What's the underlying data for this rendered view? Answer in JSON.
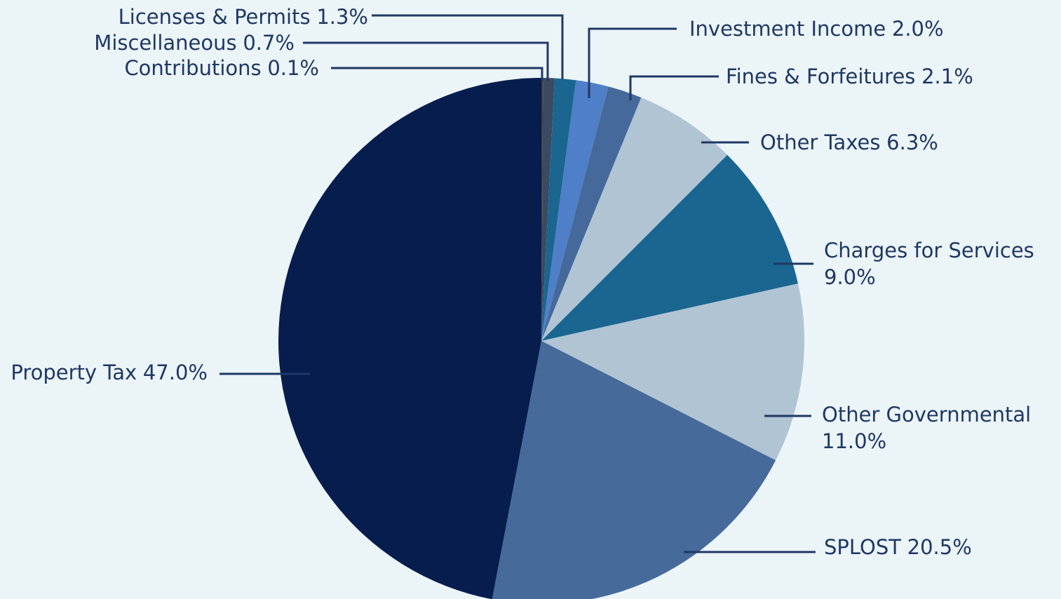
{
  "chart_data": {
    "type": "pie",
    "categories": [
      "Contributions",
      "Miscellaneous",
      "Licenses & Permits",
      "Investment Income",
      "Fines & Forfeitures",
      "Other Taxes",
      "Charges for Services",
      "Other Governmental",
      "SPLOST",
      "Property Tax"
    ],
    "values": [
      0.1,
      0.7,
      1.3,
      2.0,
      2.1,
      6.3,
      9.0,
      11.0,
      20.5,
      47.0
    ],
    "value_labels": [
      "0.1%",
      "0.7%",
      "1.3%",
      "2.0%",
      "2.1%",
      "6.3%",
      "9.0%",
      "11.0%",
      "20.5%",
      "47.0%"
    ],
    "colors": [
      "#3d3d40",
      "#3b4a60",
      "#1a6690",
      "#4f7fc8",
      "#45699a",
      "#b0c4d4",
      "#1a6690",
      "#b0c4d4",
      "#466a9a",
      "#061d4d"
    ]
  }
}
